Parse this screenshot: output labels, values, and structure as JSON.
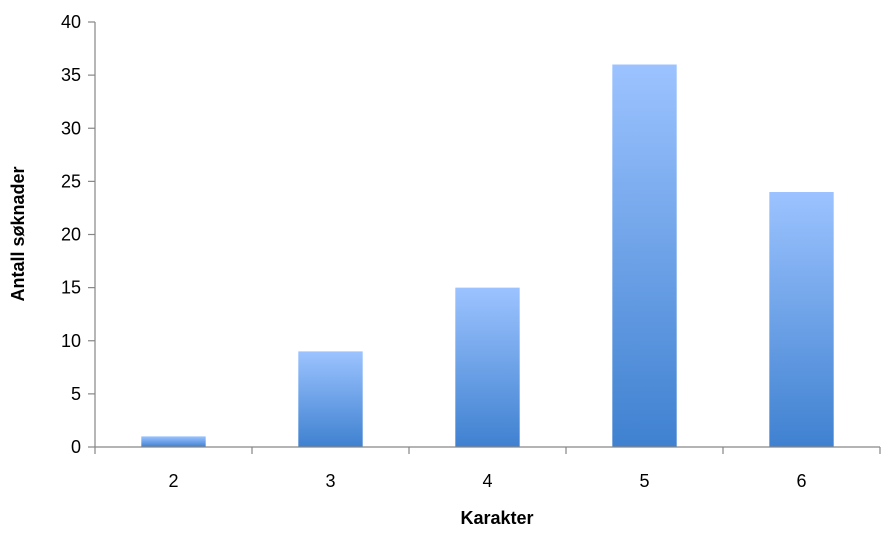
{
  "chart_data": {
    "type": "bar",
    "title": "",
    "xlabel": "Karakter",
    "ylabel": "Antall søknader",
    "categories": [
      "2",
      "3",
      "4",
      "5",
      "6"
    ],
    "values": [
      1,
      9,
      15,
      36,
      24
    ],
    "ylim": [
      0,
      40
    ],
    "yticks": [
      0,
      5,
      10,
      15,
      20,
      25,
      30,
      35,
      40
    ],
    "ytick_labels": [
      "0",
      "5",
      "10",
      "15",
      "20",
      "25",
      "30",
      "35",
      "40"
    ],
    "grid": false,
    "legend": "none",
    "colors": {
      "bar_top": "#9cc3ff",
      "bar_bottom": "#3f81d0",
      "axis": "#868686"
    }
  }
}
